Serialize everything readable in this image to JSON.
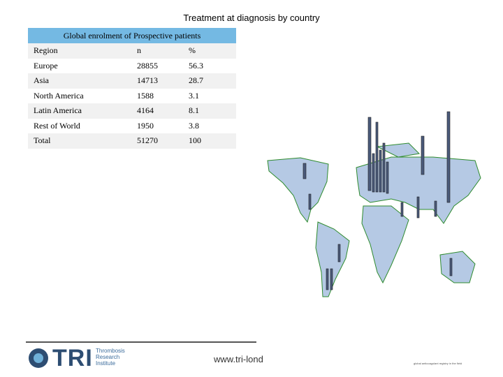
{
  "header": {
    "title": "Treatment at diagnosis by country"
  },
  "table": {
    "caption": "Global enrolment of Prospective patients",
    "columns": [
      "Region",
      "n",
      "%"
    ],
    "rows": [
      [
        "Europe",
        28855,
        56.3
      ],
      [
        "Asia",
        14713,
        28.7
      ],
      [
        "North America",
        1588,
        3.1
      ],
      [
        "Latin America",
        4164,
        8.1
      ],
      [
        "Rest of World",
        1950,
        3.8
      ],
      [
        "Total",
        51270,
        100
      ]
    ]
  },
  "footer": {
    "logo": "TRI",
    "institute": "Thrombosis Research Institute",
    "website": "www.tri-lond",
    "tagline": "global anticoagulant registry in the field"
  }
}
